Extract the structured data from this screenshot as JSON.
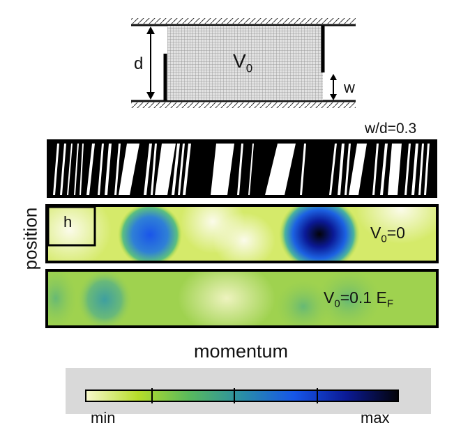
{
  "schematic": {
    "height_label": "d",
    "potential_main": "V",
    "potential_sub": "0",
    "gap_label": "w"
  },
  "ratio_label": "w/d=0.3",
  "y_axis_label": "position",
  "x_axis_label": "momentum",
  "panels": {
    "classical": {},
    "quantum_free": {
      "inset_label": "h",
      "label_main": "V",
      "label_sub": "0",
      "label_tail": "=0"
    },
    "quantum_potential": {
      "label_main": "V",
      "label_sub": "0",
      "label_mid": "=0.1 E",
      "label_sub2": "F"
    }
  },
  "colorbar": {
    "min_label": "min",
    "max_label": "max",
    "stops": [
      "#f8f8ce",
      "#b7dd2a",
      "#58b95e",
      "#2a8ea6",
      "#1656e8",
      "#0b1a96",
      "#030308"
    ]
  }
}
